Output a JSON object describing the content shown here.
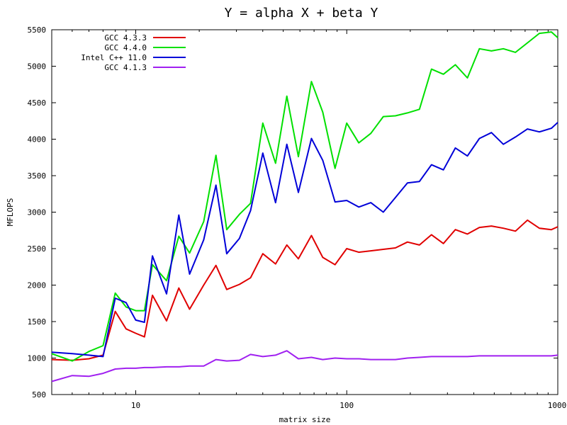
{
  "chart_data": {
    "type": "line",
    "title": "Y = alpha X + beta Y",
    "xlabel": "matrix size",
    "ylabel": "MFLOPS",
    "xscale": "log",
    "xlim": [
      4,
      1000
    ],
    "ylim": [
      500,
      5500
    ],
    "grid": false,
    "legend_position": "top-left",
    "xticks": [
      10,
      100,
      1000
    ],
    "xtick_labels": [
      "10",
      "100",
      "1000"
    ],
    "yticks": [
      500,
      1000,
      1500,
      2000,
      2500,
      3000,
      3500,
      4000,
      4500,
      5000,
      5500
    ],
    "ytick_labels": [
      "500",
      "1000",
      "1500",
      "2000",
      "2500",
      "3000",
      "3500",
      "4000",
      "4500",
      "5000",
      "5500"
    ],
    "x": [
      4,
      5,
      6,
      7,
      8,
      9,
      10,
      11,
      12,
      14,
      16,
      18,
      21,
      24,
      27,
      31,
      35,
      40,
      46,
      52,
      59,
      68,
      77,
      88,
      100,
      114,
      130,
      149,
      170,
      194,
      221,
      252,
      287,
      327,
      373,
      425,
      485,
      552,
      630,
      718,
      818,
      933,
      1000
    ],
    "series": [
      {
        "name": "GCC 4.3.3",
        "color": "#e00000",
        "values": [
          980,
          970,
          990,
          1040,
          1640,
          1400,
          1340,
          1290,
          1860,
          1510,
          1960,
          1670,
          2000,
          2270,
          1940,
          2010,
          2100,
          2430,
          2290,
          2550,
          2360,
          2680,
          2380,
          2280,
          2500,
          2450,
          2470,
          2490,
          2510,
          2590,
          2550,
          2690,
          2570,
          2760,
          2700,
          2790,
          2810,
          2780,
          2740,
          2890,
          2780,
          2760,
          2800
        ]
      },
      {
        "name": "GCC 4.4.0",
        "color": "#00e000",
        "values": [
          1060,
          960,
          1090,
          1170,
          1890,
          1700,
          1650,
          1650,
          2280,
          2060,
          2670,
          2440,
          2870,
          3780,
          2760,
          2970,
          3120,
          4220,
          3670,
          4590,
          3760,
          4790,
          4370,
          3600,
          4220,
          3950,
          4080,
          4310,
          4320,
          4360,
          4410,
          4960,
          4890,
          5020,
          4840,
          5240,
          5210,
          5240,
          5190,
          5320,
          5450,
          5470,
          5390
        ]
      },
      {
        "name": "Intel C++ 11.0",
        "color": "#0000d8",
        "values": [
          1080,
          1060,
          1040,
          1020,
          1820,
          1760,
          1520,
          1490,
          2400,
          1880,
          2960,
          2150,
          2620,
          3370,
          2430,
          2640,
          3020,
          3810,
          3130,
          3930,
          3270,
          4010,
          3710,
          3140,
          3160,
          3070,
          3130,
          3000,
          3200,
          3400,
          3420,
          3650,
          3580,
          3880,
          3770,
          4010,
          4090,
          3930,
          4030,
          4140,
          4100,
          4150,
          4230
        ]
      },
      {
        "name": "GCC 4.1.3",
        "color": "#a020f0",
        "values": [
          680,
          760,
          750,
          790,
          850,
          860,
          860,
          870,
          870,
          880,
          880,
          890,
          890,
          980,
          960,
          970,
          1050,
          1020,
          1040,
          1100,
          990,
          1010,
          980,
          1000,
          990,
          990,
          980,
          980,
          980,
          1000,
          1010,
          1020,
          1020,
          1020,
          1020,
          1030,
          1030,
          1030,
          1030,
          1030,
          1030,
          1030,
          1040
        ]
      }
    ]
  }
}
